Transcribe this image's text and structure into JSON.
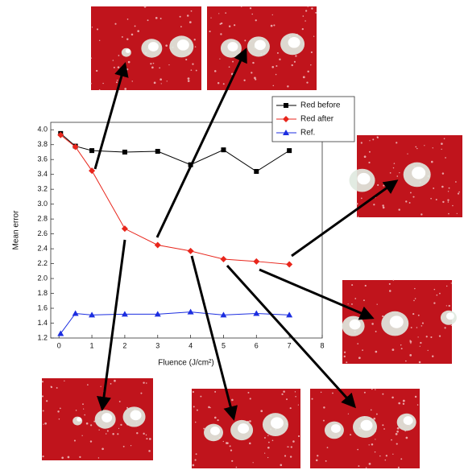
{
  "chart_data": {
    "type": "line",
    "x_label": "Fluence (J/cm²)",
    "y_label": "Mean error",
    "xlim": [
      -0.25,
      8
    ],
    "ylim": [
      1.2,
      4.1
    ],
    "xticks": [
      0,
      1,
      2,
      3,
      4,
      5,
      6,
      7,
      8
    ],
    "yticks": [
      1.2,
      1.4,
      1.6,
      1.8,
      {
        "value": 2.0,
        "label": "2.0"
      },
      2.2,
      2.4,
      2.6,
      2.8,
      {
        "value": 3.0,
        "label": "3.0"
      },
      3.2,
      3.4,
      3.6,
      3.8,
      {
        "value": 4.0,
        "label": "4.0"
      }
    ],
    "legend": "top-right",
    "series": [
      {
        "name": "Red before",
        "color": "#000000",
        "marker": "square",
        "x": [
          0.05,
          0.5,
          1,
          2,
          3,
          4,
          5,
          6,
          7
        ],
        "values": [
          3.95,
          3.78,
          3.72,
          3.7,
          3.71,
          3.53,
          3.73,
          3.44,
          3.72
        ]
      },
      {
        "name": "Red after",
        "color": "#e8261c",
        "marker": "diamond",
        "x": [
          0.05,
          0.5,
          1,
          2,
          3,
          4,
          5,
          6,
          7
        ],
        "values": [
          3.93,
          3.77,
          3.45,
          2.67,
          2.45,
          2.37,
          2.26,
          2.23,
          2.19
        ]
      },
      {
        "name": "Ref.",
        "color": "#1c2ee0",
        "marker": "triangle",
        "x": [
          0.05,
          0.5,
          1,
          2,
          3,
          4,
          5,
          6,
          7
        ],
        "values": [
          1.26,
          1.53,
          1.51,
          1.52,
          1.52,
          1.55,
          1.51,
          1.53,
          1.51
        ]
      }
    ]
  }
}
